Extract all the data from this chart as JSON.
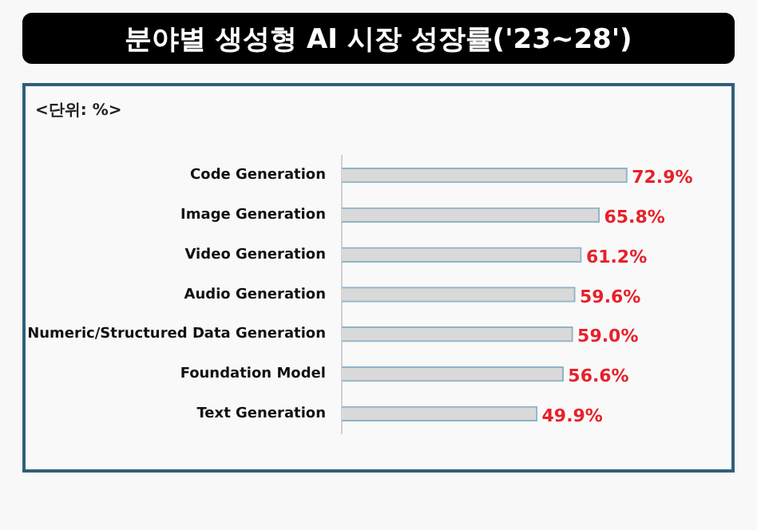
{
  "chart_data": {
    "type": "bar",
    "orientation": "horizontal",
    "title": "분야별 생성형 AI 시장 성장률('23~28')",
    "annotations": [
      "<단위: %>"
    ],
    "categories": [
      "Code Generation",
      "Image Generation",
      "Video Generation",
      "Audio Generation",
      "Numeric/Structured Data Generation",
      "Foundation Model",
      "Text Generation"
    ],
    "values": [
      72.9,
      65.8,
      61.2,
      59.6,
      59.0,
      56.6,
      49.9
    ],
    "value_labels": [
      "72.9%",
      "65.8%",
      "61.2%",
      "59.6%",
      "59.0%",
      "56.6%",
      "49.9%"
    ],
    "color": "#d9d9d9",
    "tick_labels": "y",
    "grid": false,
    "legend": false
  }
}
